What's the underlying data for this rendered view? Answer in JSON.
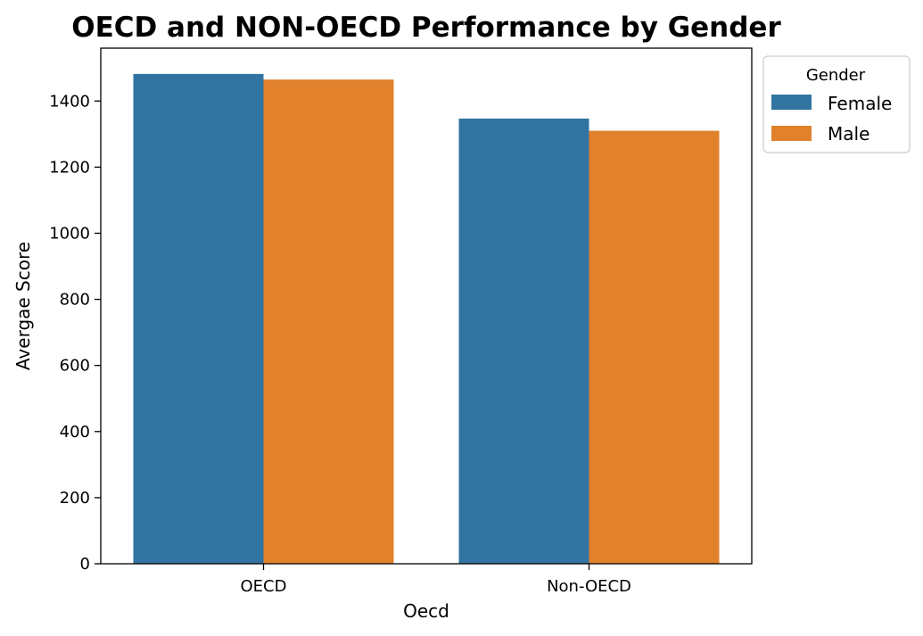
{
  "chart_data": {
    "type": "bar",
    "title": "OECD and NON-OECD Performance by Gender",
    "xlabel": "Oecd",
    "ylabel": "Avergae Score",
    "categories": [
      "OECD",
      "Non-OECD"
    ],
    "series": [
      {
        "name": "Female",
        "values": [
          1482,
          1347
        ],
        "color": "#3274a1"
      },
      {
        "name": "Male",
        "values": [
          1465,
          1310
        ],
        "color": "#e1812c"
      }
    ],
    "ylim": [
      0,
      1560
    ],
    "yticks": [
      0,
      200,
      400,
      600,
      800,
      1000,
      1200,
      1400
    ],
    "grid": false,
    "legend": {
      "title": "Gender",
      "placement": "outside-top-right"
    }
  }
}
